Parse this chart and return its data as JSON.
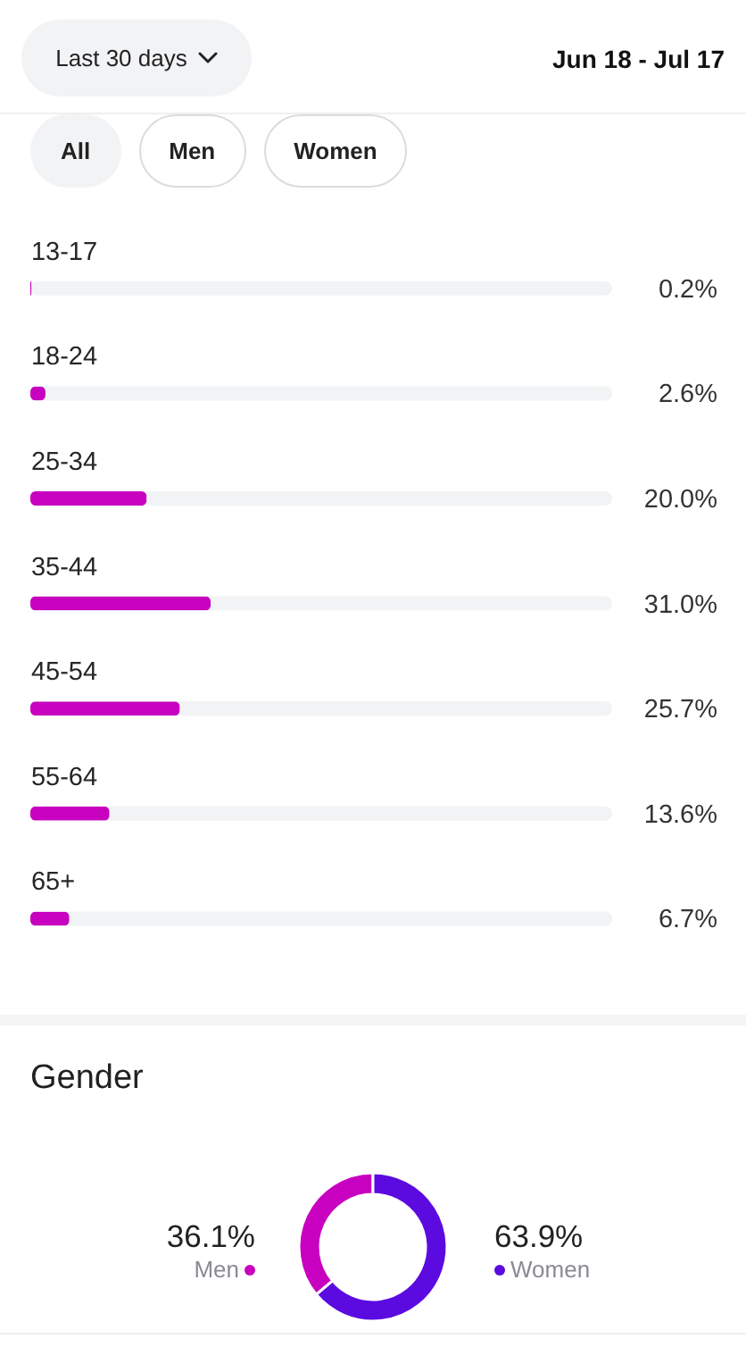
{
  "chart_data": [
    {
      "type": "bar",
      "orientation": "horizontal",
      "categories": [
        "13-17",
        "18-24",
        "25-34",
        "35-44",
        "45-54",
        "55-64",
        "65+"
      ],
      "values": [
        0.2,
        2.6,
        20.0,
        31.0,
        25.7,
        13.6,
        6.7
      ],
      "color": "#c800c0",
      "value_labels": [
        "0.2%",
        "2.6%",
        "20.0%",
        "31.0%",
        "25.7%",
        "13.6%",
        "6.7%"
      ],
      "xlim": [
        0,
        100
      ],
      "tick_labels": "y",
      "annotations": [
        "Last 30 days",
        "Jun 18 - Jul 17",
        "All",
        "Men",
        "Women"
      ]
    },
    {
      "type": "donut",
      "title": "Gender",
      "categories": [
        "Men",
        "Women"
      ],
      "values": [
        36.1,
        63.9
      ],
      "colors": [
        "#c800c0",
        "#5b0be0"
      ],
      "value_labels": [
        "36.1%",
        "63.9%"
      ]
    }
  ]
}
